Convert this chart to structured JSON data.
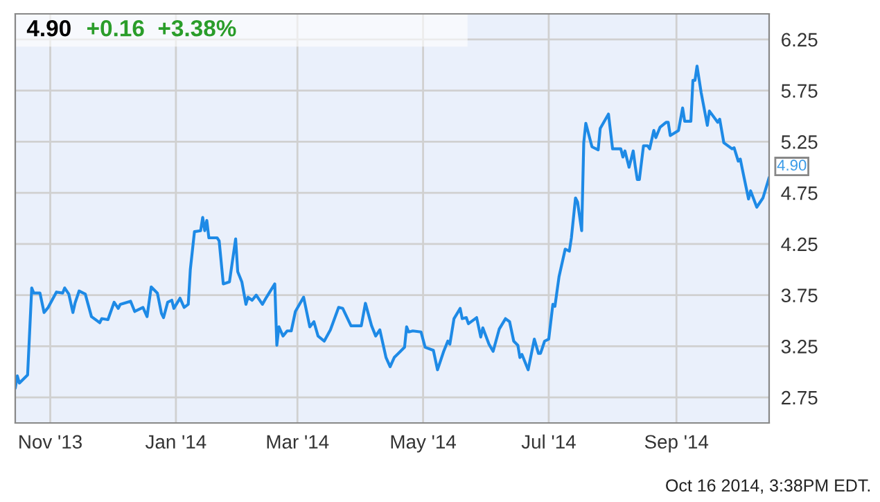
{
  "chart_data": {
    "type": "line",
    "title": "4.90",
    "subtitle": "+0.16  +3.38%",
    "annotations": [
      "Oct 16 2014, 3:38PM EDT.",
      {
        "text": "4.90",
        "x": "2014-10-16",
        "y": 4.9
      }
    ],
    "x": [
      "2013-10-15",
      "2013-10-16",
      "2013-10-17",
      "2013-10-21",
      "2013-10-23",
      "2013-10-24",
      "2013-10-27",
      "2013-10-29",
      "2013-10-31",
      "2013-11-04",
      "2013-11-07",
      "2013-11-08",
      "2013-11-10",
      "2013-11-12",
      "2013-11-13",
      "2013-11-15",
      "2013-11-18",
      "2013-11-21",
      "2013-11-25",
      "2013-11-26",
      "2013-11-29",
      "2013-12-02",
      "2013-12-04",
      "2013-12-05",
      "2013-12-10",
      "2013-12-12",
      "2013-12-16",
      "2013-12-18",
      "2013-12-20",
      "2013-12-23",
      "2013-12-25",
      "2013-12-26",
      "2013-12-28",
      "2013-12-30",
      "2013-12-31",
      "2014-01-03",
      "2014-01-05",
      "2014-01-07",
      "2014-01-08",
      "2014-01-10",
      "2014-01-13",
      "2014-01-14",
      "2014-01-15",
      "2014-01-16",
      "2014-01-17",
      "2014-01-21",
      "2014-01-22",
      "2014-01-24",
      "2014-01-27",
      "2014-01-28",
      "2014-01-30",
      "2014-01-31",
      "2014-02-02",
      "2014-02-04",
      "2014-02-05",
      "2014-02-07",
      "2014-02-09",
      "2014-02-12",
      "2014-02-14",
      "2014-02-18",
      "2014-02-19",
      "2014-02-20",
      "2014-02-22",
      "2014-02-24",
      "2014-02-26",
      "2014-02-28",
      "2014-03-04",
      "2014-03-07",
      "2014-03-09",
      "2014-03-11",
      "2014-03-14",
      "2014-03-17",
      "2014-03-21",
      "2014-03-23",
      "2014-03-27",
      "2014-04-01",
      "2014-04-03",
      "2014-04-06",
      "2014-04-08",
      "2014-04-10",
      "2014-04-13",
      "2014-04-15",
      "2014-04-17",
      "2014-04-22",
      "2014-04-23",
      "2014-04-24",
      "2014-04-26",
      "2014-04-30",
      "2014-05-02",
      "2014-05-06",
      "2014-05-08",
      "2014-05-11",
      "2014-05-13",
      "2014-05-14",
      "2014-05-16",
      "2014-05-19",
      "2014-05-20",
      "2014-05-22",
      "2014-05-23",
      "2014-05-27",
      "2014-05-29",
      "2014-05-30",
      "2014-06-02",
      "2014-06-04",
      "2014-06-07",
      "2014-06-10",
      "2014-06-12",
      "2014-06-14",
      "2014-06-16",
      "2014-06-17",
      "2014-06-18",
      "2014-06-21",
      "2014-06-24",
      "2014-06-26",
      "2014-06-27",
      "2014-06-29",
      "2014-07-01",
      "2014-07-03",
      "2014-07-04",
      "2014-07-06",
      "2014-07-09",
      "2014-07-11",
      "2014-07-12",
      "2014-07-14",
      "2014-07-15",
      "2014-07-17",
      "2014-07-18",
      "2014-07-19",
      "2014-07-22",
      "2014-07-25",
      "2014-07-26",
      "2014-07-30",
      "2014-08-01",
      "2014-08-05",
      "2014-08-06",
      "2014-08-07",
      "2014-08-09",
      "2014-08-11",
      "2014-08-12",
      "2014-08-13",
      "2014-08-14",
      "2014-08-16",
      "2014-08-18",
      "2014-08-19",
      "2014-08-21",
      "2014-08-22",
      "2014-08-24",
      "2014-08-27",
      "2014-08-28",
      "2014-08-29",
      "2014-09-02",
      "2014-09-04",
      "2014-09-05",
      "2014-09-08",
      "2014-09-09",
      "2014-09-10",
      "2014-09-11",
      "2014-09-13",
      "2014-09-16",
      "2014-09-17",
      "2014-09-21",
      "2014-09-22",
      "2014-09-24",
      "2014-09-28",
      "2014-09-29",
      "2014-10-01",
      "2014-10-02",
      "2014-10-03",
      "2014-10-06",
      "2014-10-07",
      "2014-10-10",
      "2014-10-13",
      "2014-10-16"
    ],
    "series": [
      {
        "color": "#1e8ae6",
        "values": [
          2.84,
          2.96,
          2.89,
          2.97,
          3.82,
          3.77,
          3.77,
          3.58,
          3.63,
          3.78,
          3.77,
          3.82,
          3.76,
          3.58,
          3.67,
          3.79,
          3.76,
          3.54,
          3.48,
          3.52,
          3.51,
          3.68,
          3.62,
          3.66,
          3.69,
          3.59,
          3.63,
          3.54,
          3.83,
          3.77,
          3.57,
          3.53,
          3.68,
          3.7,
          3.62,
          3.72,
          3.63,
          3.66,
          4.0,
          4.37,
          4.38,
          4.51,
          4.38,
          4.48,
          4.31,
          4.31,
          4.28,
          3.86,
          3.88,
          4.02,
          4.3,
          3.98,
          3.88,
          3.66,
          3.73,
          3.7,
          3.75,
          3.66,
          3.73,
          3.86,
          3.26,
          3.44,
          3.35,
          3.4,
          3.4,
          3.59,
          3.73,
          3.44,
          3.49,
          3.35,
          3.3,
          3.41,
          3.63,
          3.62,
          3.45,
          3.45,
          3.67,
          3.45,
          3.35,
          3.41,
          3.14,
          3.05,
          3.14,
          3.24,
          3.44,
          3.39,
          3.4,
          3.39,
          3.24,
          3.21,
          3.02,
          3.2,
          3.3,
          3.27,
          3.52,
          3.62,
          3.52,
          3.53,
          3.47,
          3.53,
          3.34,
          3.43,
          3.27,
          3.2,
          3.42,
          3.52,
          3.49,
          3.3,
          3.26,
          3.14,
          3.17,
          3.02,
          3.32,
          3.18,
          3.18,
          3.3,
          3.32,
          3.66,
          3.64,
          3.93,
          4.2,
          4.18,
          4.31,
          4.7,
          4.66,
          4.38,
          5.24,
          5.43,
          5.2,
          5.17,
          5.38,
          5.52,
          5.18,
          5.18,
          5.1,
          5.16,
          5.0,
          5.16,
          5.01,
          4.88,
          4.88,
          5.21,
          5.21,
          5.18,
          5.36,
          5.29,
          5.39,
          5.44,
          5.44,
          5.31,
          5.36,
          5.58,
          5.45,
          5.45,
          5.85,
          5.85,
          5.99,
          5.73,
          5.41,
          5.55,
          5.44,
          5.47,
          5.24,
          5.18,
          5.19,
          5.06,
          5.08,
          4.98,
          4.69,
          4.77,
          4.61,
          4.7,
          4.9
        ]
      }
    ],
    "xlim": [
      "2013-10-15",
      "2014-10-16"
    ],
    "xticks": [
      {
        "value": "2013-11-01",
        "label": "Nov '13"
      },
      {
        "value": "2014-01-01",
        "label": "Jan '14"
      },
      {
        "value": "2014-03-01",
        "label": "Mar '14"
      },
      {
        "value": "2014-05-01",
        "label": "May '14"
      },
      {
        "value": "2014-07-01",
        "label": "Jul '14"
      },
      {
        "value": "2014-09-01",
        "label": "Sep '14"
      }
    ],
    "ylim": [
      2.5,
      6.5
    ],
    "yticks": [
      2.75,
      3.25,
      3.75,
      4.25,
      4.75,
      5.25,
      5.75,
      6.25
    ],
    "grid": true,
    "legend": false,
    "marker": "none",
    "line_style": "solid"
  }
}
